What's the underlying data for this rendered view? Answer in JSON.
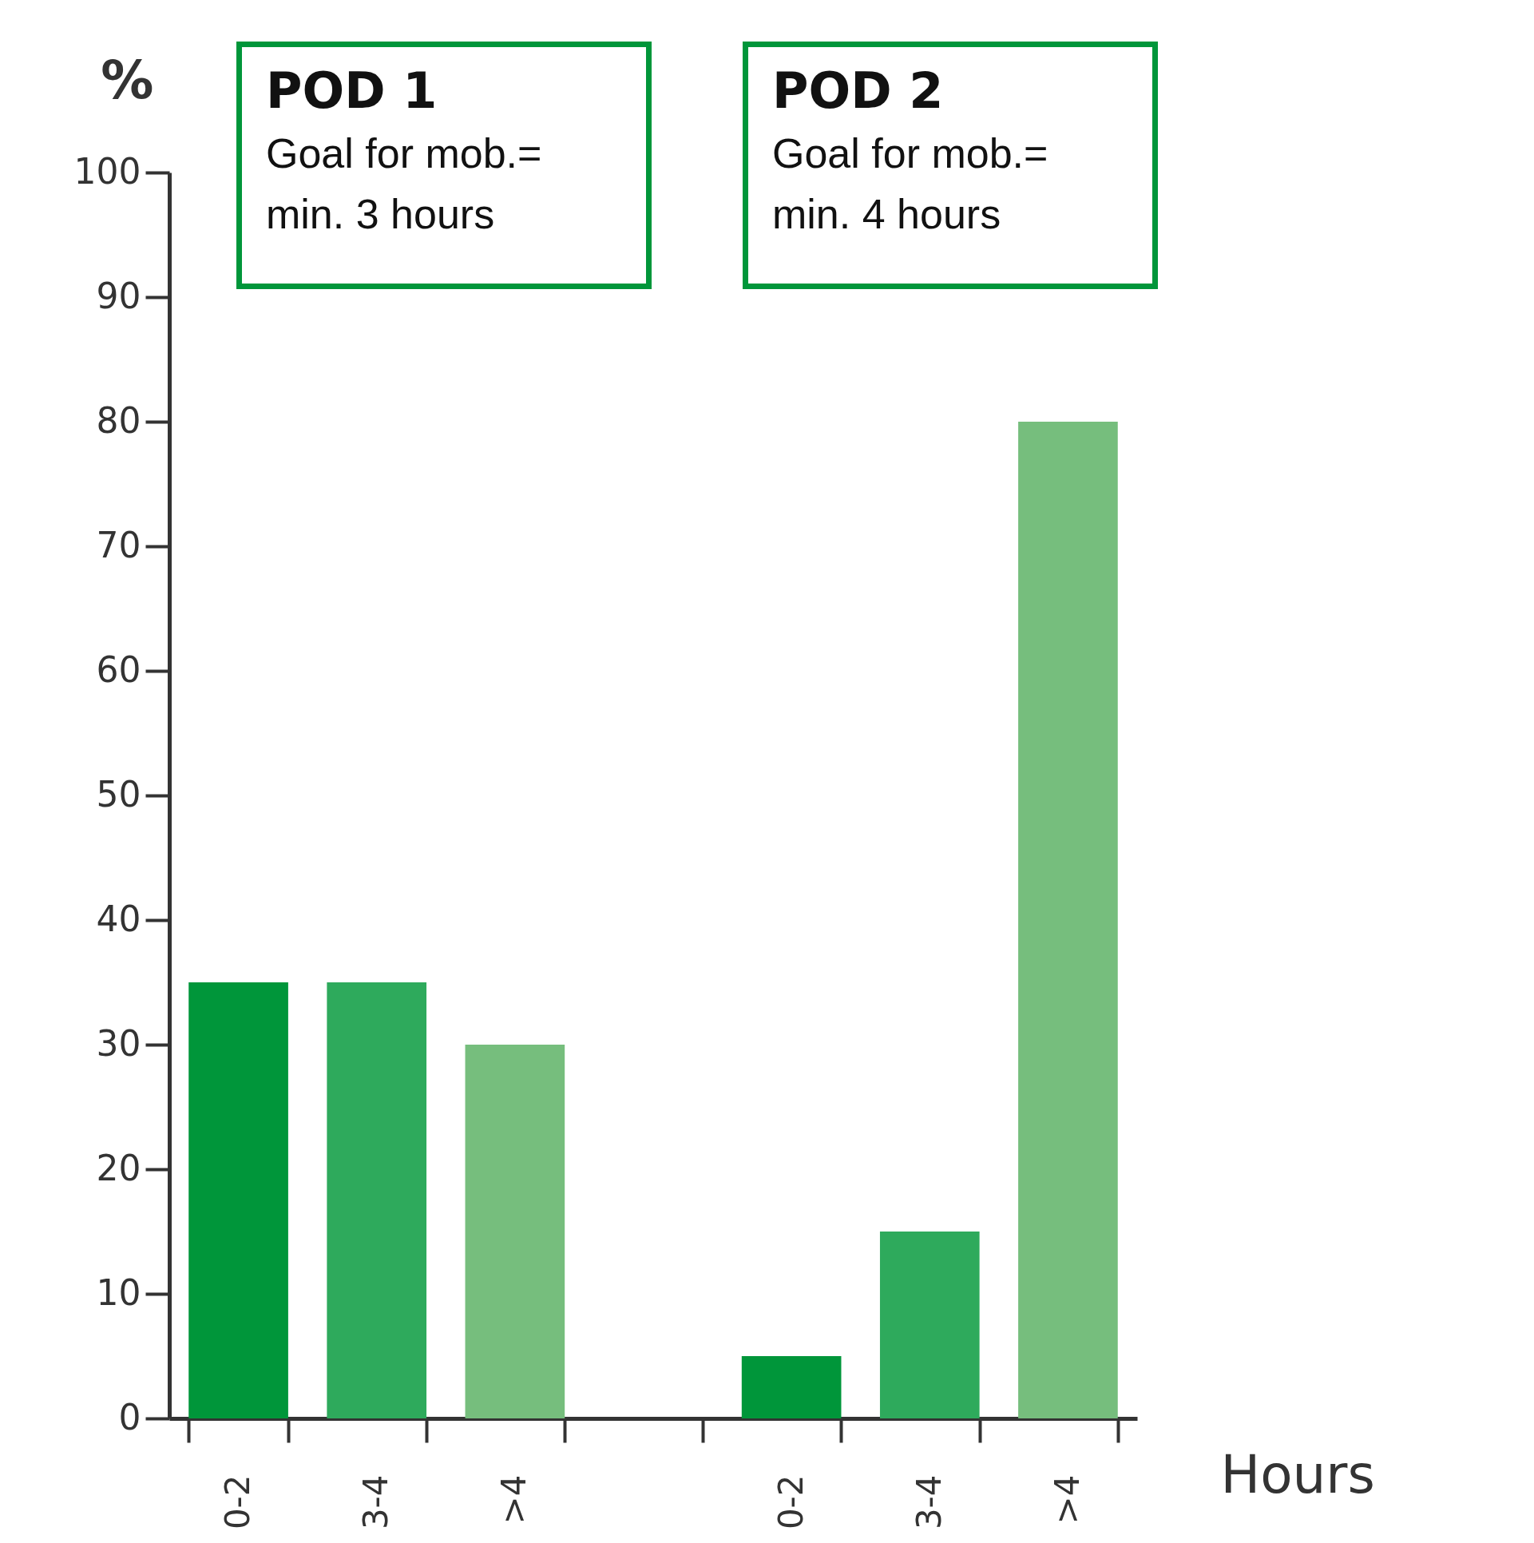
{
  "chart_data": {
    "type": "bar",
    "ylabel": "%",
    "xlabel": "Hours",
    "categories": [
      "0-2",
      "3-4",
      ">4",
      null,
      "0-2",
      "3-4",
      ">4"
    ],
    "values": [
      35,
      35,
      30,
      null,
      5,
      15,
      80
    ],
    "colors": [
      "#00963a",
      "#2eaa5c",
      "#76be7d",
      "#ffffff",
      "#00963a",
      "#2eaa5c",
      "#76be7d"
    ],
    "ylim": [
      0,
      100
    ],
    "yticks": [
      0,
      10,
      20,
      30,
      40,
      50,
      60,
      70,
      80,
      90,
      100
    ],
    "annotations": [
      "POD 1",
      "Goal for mob.= min. 3 hours",
      "POD 2",
      "Goal for mob.= min. 4 hours"
    ]
  }
}
